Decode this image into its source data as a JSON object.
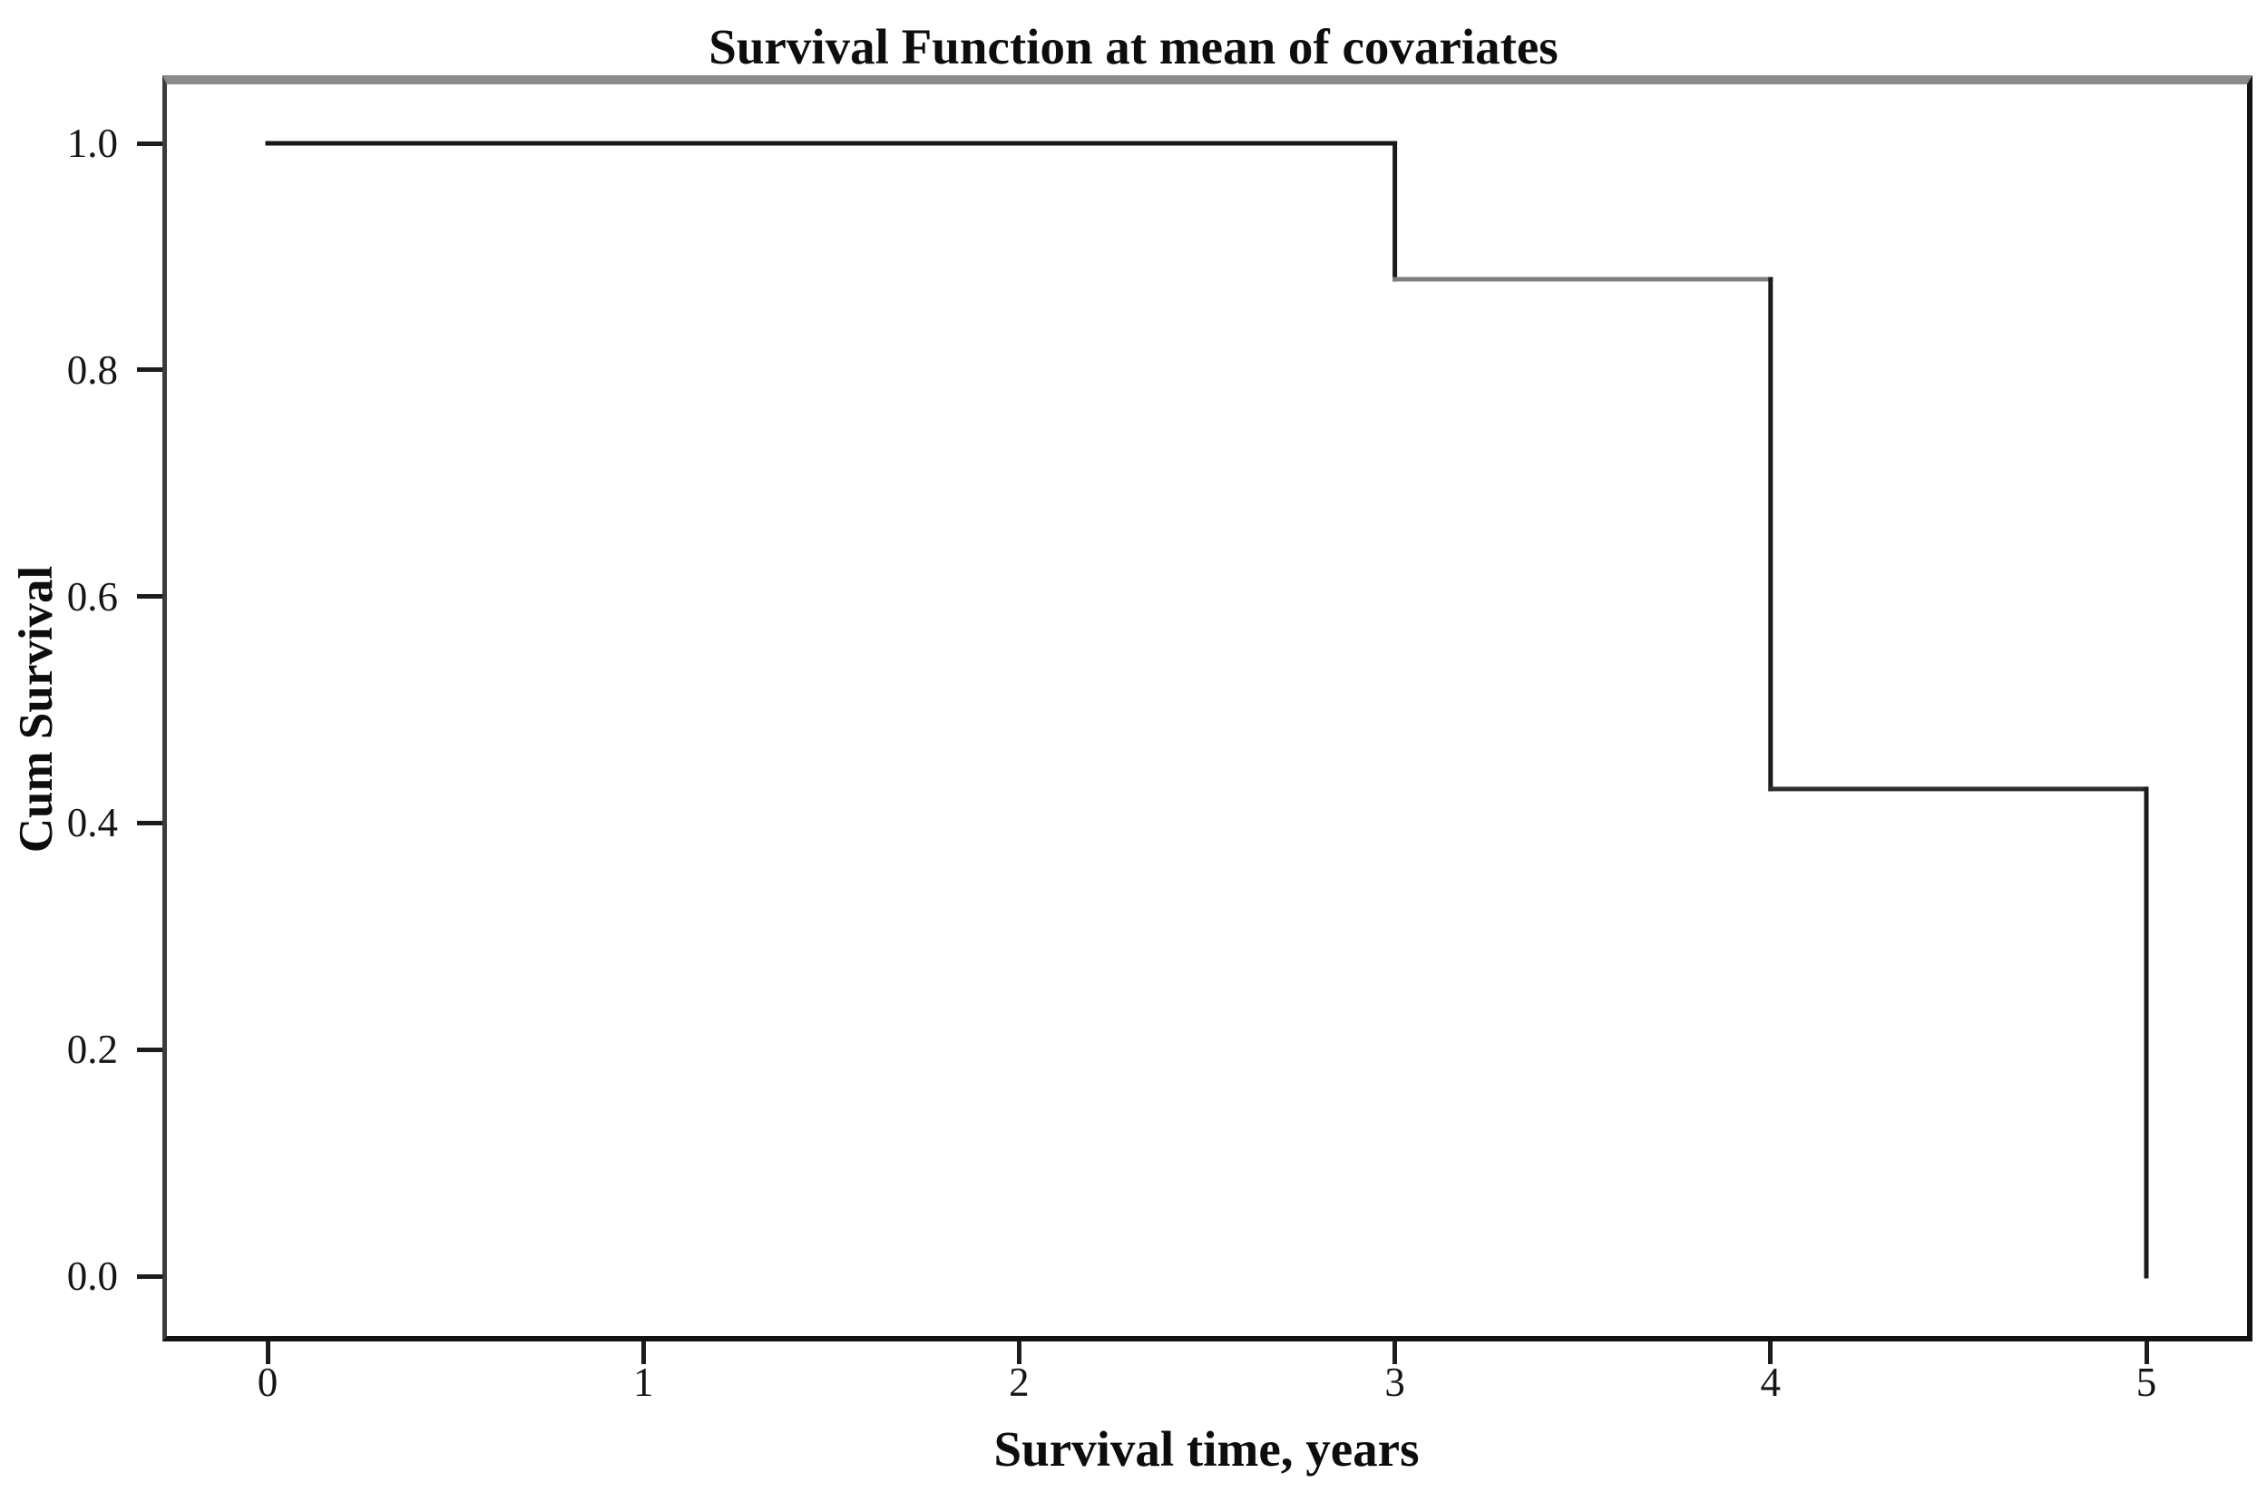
{
  "chart_data": {
    "type": "line",
    "subtype": "step",
    "title": "Survival Function at mean of covariates",
    "xlabel": "Survival time, years",
    "ylabel": "Cum Survival",
    "xlim": [
      -0.28,
      5.28
    ],
    "ylim": [
      -0.055,
      1.056
    ],
    "grid": false,
    "legend_position": "none",
    "xticks": {
      "values": [
        0,
        1,
        2,
        3,
        4,
        5
      ],
      "labels": [
        "0",
        "1",
        "2",
        "3",
        "4",
        "5"
      ]
    },
    "yticks": {
      "values": [
        0.0,
        0.2,
        0.4,
        0.6,
        0.8,
        1.0
      ],
      "labels": [
        "0.0",
        "0.2",
        "0.4",
        "0.6",
        "0.8",
        "1.0"
      ]
    },
    "series": [
      {
        "name": "Survival function at mean of covariates",
        "step_x": [
          0,
          3,
          4,
          5
        ],
        "step_y": [
          1.0,
          0.88,
          0.43,
          0.0
        ],
        "x": [
          0,
          3,
          3,
          4,
          4,
          5,
          5
        ],
        "y": [
          1.0,
          1.0,
          0.88,
          0.88,
          0.43,
          0.43,
          0.0
        ]
      }
    ],
    "segments": [
      {
        "x1": 0,
        "y1": 1.0,
        "x2": 3,
        "y2": 1.0,
        "color": "#161616"
      },
      {
        "x1": 3,
        "y1": 1.0,
        "x2": 3,
        "y2": 0.88,
        "color": "#1b1b1b"
      },
      {
        "x1": 3,
        "y1": 0.88,
        "x2": 4,
        "y2": 0.88,
        "color": "#7e7e7e"
      },
      {
        "x1": 4,
        "y1": 0.88,
        "x2": 4,
        "y2": 0.43,
        "color": "#1b1b1b"
      },
      {
        "x1": 4,
        "y1": 0.43,
        "x2": 5,
        "y2": 0.43,
        "color": "#2e2e2e"
      },
      {
        "x1": 5,
        "y1": 0.43,
        "x2": 5,
        "y2": 0.0,
        "color": "#1b1b1b"
      }
    ],
    "colors": {
      "background": "#ffffff",
      "text": "#0d0d0d",
      "tick": "#1c1c1c",
      "frame_top": "#8a8a8a",
      "frame_left": "#3c3c3c",
      "frame_right": "#141414",
      "frame_bottom": "#141414"
    }
  }
}
